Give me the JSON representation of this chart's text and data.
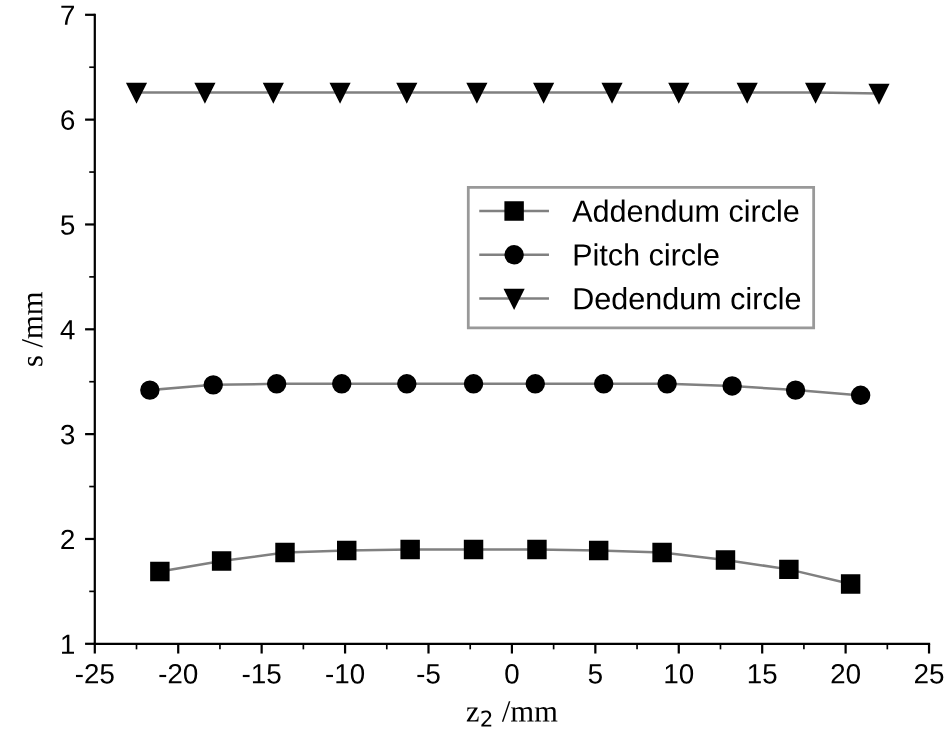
{
  "chart_data": {
    "type": "line",
    "xlabel": "z$_{2}$ /mm",
    "ylabel": "s /mm",
    "xlim": [
      -25,
      25
    ],
    "xticks": [
      -25,
      -20,
      -15,
      -10,
      -5,
      0,
      5,
      10,
      15,
      20,
      25
    ],
    "ylim": [
      1,
      7
    ],
    "yticks": [
      1,
      2,
      3,
      4,
      5,
      6,
      7
    ],
    "legend": "top right",
    "grid": false,
    "line_style": "solid",
    "series": [
      {
        "name": "Addendum circle",
        "color": "#000000",
        "marker": "square",
        "x": [
          -21.1,
          -17.4,
          -13.6,
          -9.9,
          -6.1,
          -2.3,
          1.5,
          5.2,
          9.0,
          12.8,
          16.6,
          20.3
        ],
        "values": [
          1.69,
          1.79,
          1.87,
          1.89,
          1.9,
          1.9,
          1.9,
          1.89,
          1.87,
          1.8,
          1.71,
          1.57
        ]
      },
      {
        "name": "Pitch circle",
        "color": "#000000",
        "marker": "circle",
        "x": [
          -21.7,
          -17.9,
          -14.1,
          -10.2,
          -6.3,
          -2.3,
          1.4,
          5.5,
          9.3,
          13.2,
          17.0,
          20.9
        ],
        "values": [
          3.42,
          3.47,
          3.48,
          3.48,
          3.48,
          3.48,
          3.48,
          3.48,
          3.48,
          3.46,
          3.42,
          3.37
        ]
      },
      {
        "name": "Dedendum circle",
        "color": "#000000",
        "marker": "triangle",
        "x": [
          -22.5,
          -18.4,
          -14.3,
          -10.3,
          -6.3,
          -2.1,
          1.9,
          6.0,
          10.0,
          14.1,
          18.2,
          22.0
        ],
        "values": [
          6.26,
          6.26,
          6.26,
          6.26,
          6.26,
          6.26,
          6.26,
          6.26,
          6.26,
          6.26,
          6.26,
          6.25
        ]
      }
    ]
  }
}
